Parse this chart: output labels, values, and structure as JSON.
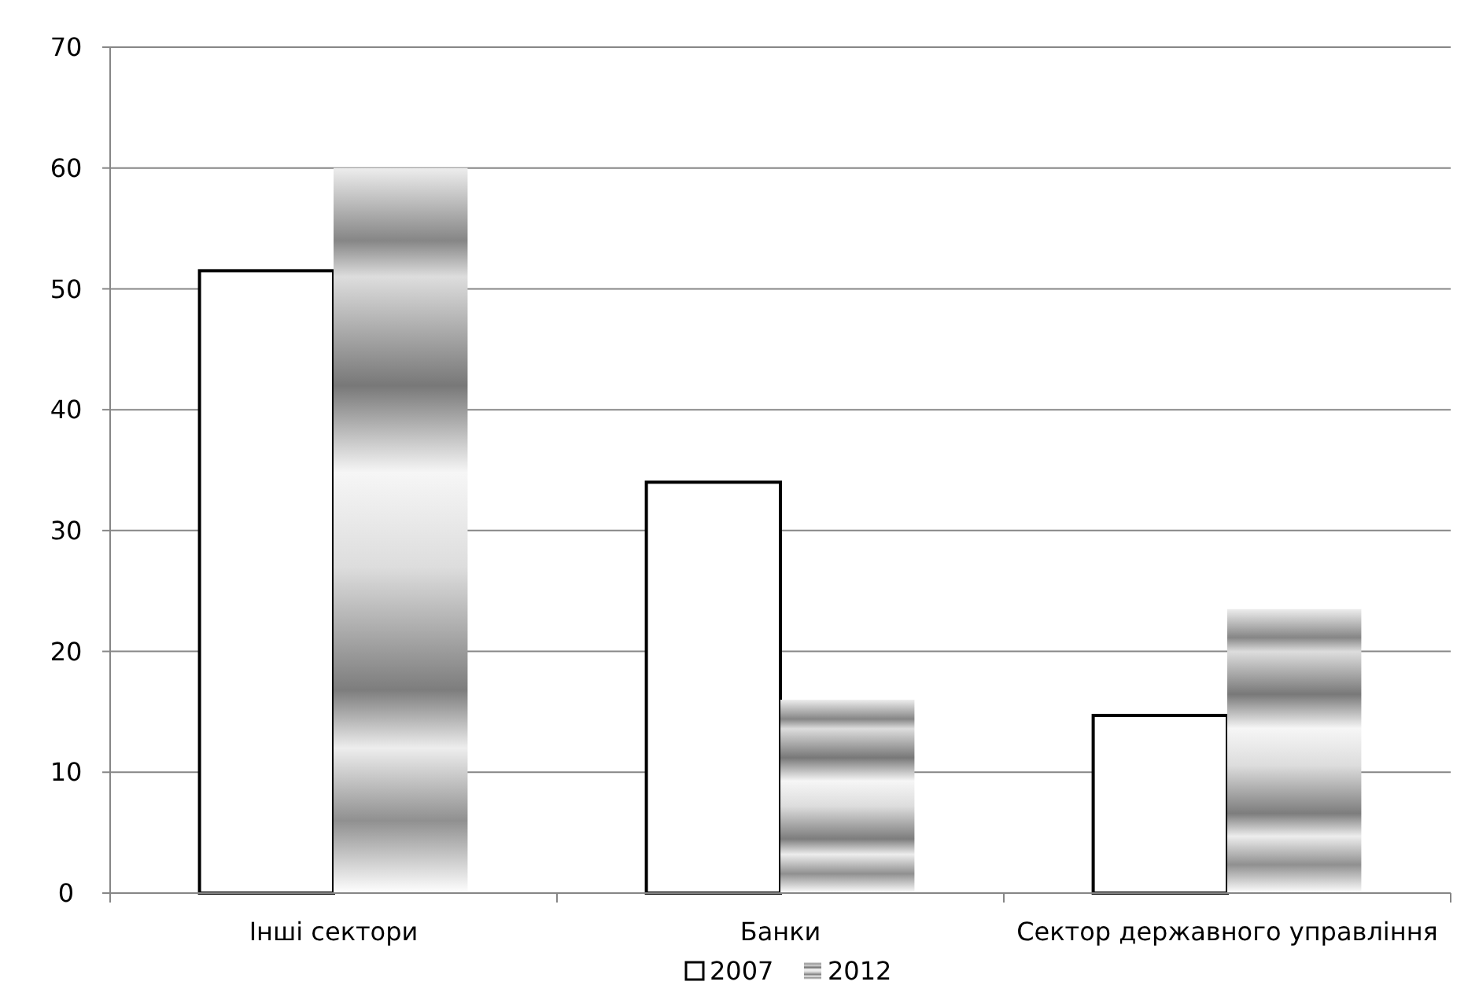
{
  "chart_data": {
    "type": "bar",
    "categories": [
      "Інші сектори",
      "Банки",
      "Сектор державного управління"
    ],
    "series": [
      {
        "name": "2007",
        "color": "#ffffff",
        "values": [
          51.5,
          34,
          14.7
        ]
      },
      {
        "name": "2012",
        "color": "#a6a6a6",
        "values": [
          60,
          16,
          23.5
        ]
      }
    ],
    "ylim": [
      0,
      70
    ],
    "yticks": [
      0,
      10,
      20,
      30,
      40,
      50,
      60,
      70
    ],
    "grid": "y",
    "legend": "bottom"
  }
}
